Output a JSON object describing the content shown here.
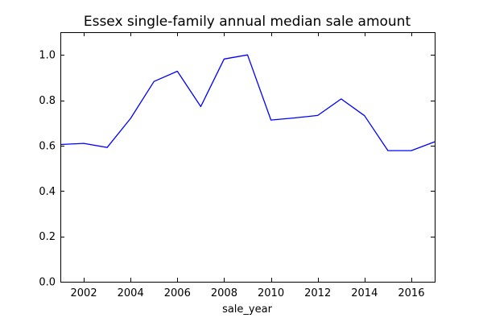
{
  "chart_data": {
    "type": "line",
    "title": "Essex single-family annual median sale amount",
    "xlabel": "sale_year",
    "ylabel": "",
    "xlim": [
      2001,
      2017
    ],
    "ylim": [
      0.0,
      1.1
    ],
    "x_ticks": [
      2002,
      2004,
      2006,
      2008,
      2010,
      2012,
      2014,
      2016
    ],
    "x_tick_labels": [
      "2002",
      "2004",
      "2006",
      "2008",
      "2010",
      "2012",
      "2014",
      "2016"
    ],
    "y_ticks": [
      0.0,
      0.2,
      0.4,
      0.6,
      0.8,
      1.0
    ],
    "y_tick_labels": [
      "0.0",
      "0.2",
      "0.4",
      "0.6",
      "0.8",
      "1.0"
    ],
    "grid": false,
    "legend": "none",
    "line_color": "#0000ff",
    "series": [
      {
        "x": [
          2001,
          2002,
          2003,
          2004,
          2005,
          2006,
          2007,
          2008,
          2009,
          2010,
          2011,
          2012,
          2013,
          2014,
          2015,
          2016,
          2017
        ],
        "values": [
          0.605,
          0.61,
          0.592,
          0.72,
          0.883,
          0.928,
          0.772,
          0.982,
          1.0,
          0.713,
          0.722,
          0.733,
          0.806,
          0.732,
          0.578,
          0.578,
          0.617
        ]
      }
    ]
  }
}
